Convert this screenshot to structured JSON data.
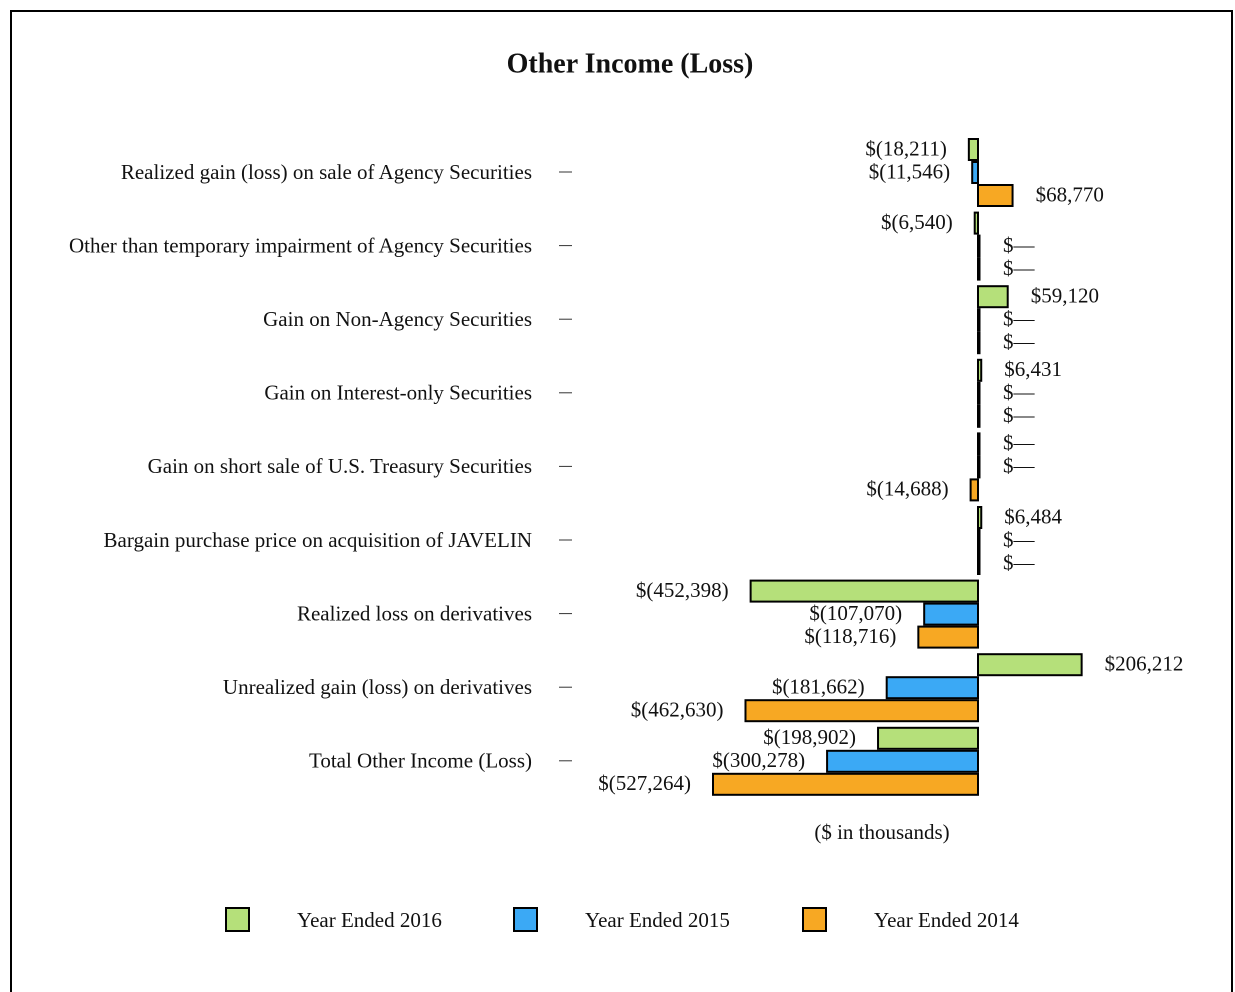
{
  "chart_data": {
    "type": "barh",
    "title": "Other Income (Loss)",
    "x_label": "($ in thousands)",
    "categories": [
      "Realized gain (loss) on sale of Agency Securities",
      "Other than temporary impairment of Agency Securities",
      "Gain on Non-Agency Securities",
      "Gain on Interest-only Securities",
      "Gain on short sale of U.S. Treasury Securities",
      "Bargain purchase price on acquisition of JAVELIN",
      "Realized loss on derivatives",
      "Unrealized gain (loss) on derivatives",
      "Total Other Income (Loss)"
    ],
    "series": [
      {
        "name": "Year Ended 2016",
        "color": "#b5e07a",
        "values": [
          -18211,
          -6540,
          59120,
          6431,
          0,
          6484,
          -452398,
          206212,
          -198902
        ],
        "value_labels": [
          "$(18,211)",
          "$(6,540)",
          "$59,120",
          "$6,431",
          "$—",
          "$6,484",
          "$(452,398)",
          "$206,212",
          "$(198,902)"
        ]
      },
      {
        "name": "Year Ended 2015",
        "color": "#3ba9f5",
        "values": [
          -11546,
          0,
          0,
          0,
          0,
          0,
          -107070,
          -181662,
          -300278
        ],
        "value_labels": [
          "$(11,546)",
          "$—",
          "$—",
          "$—",
          "$—",
          "$—",
          "$(107,070)",
          "$(181,662)",
          "$(300,278)"
        ]
      },
      {
        "name": "Year Ended 2014",
        "color": "#f7a823",
        "values": [
          68770,
          0,
          0,
          0,
          -14688,
          0,
          -118716,
          -462630,
          -527264
        ],
        "value_labels": [
          "$68,770",
          "$—",
          "$—",
          "$—",
          "$(14,688)",
          "$—",
          "$(118,716)",
          "$(462,630)",
          "$(527,264)"
        ]
      }
    ],
    "legend": "bottom"
  }
}
